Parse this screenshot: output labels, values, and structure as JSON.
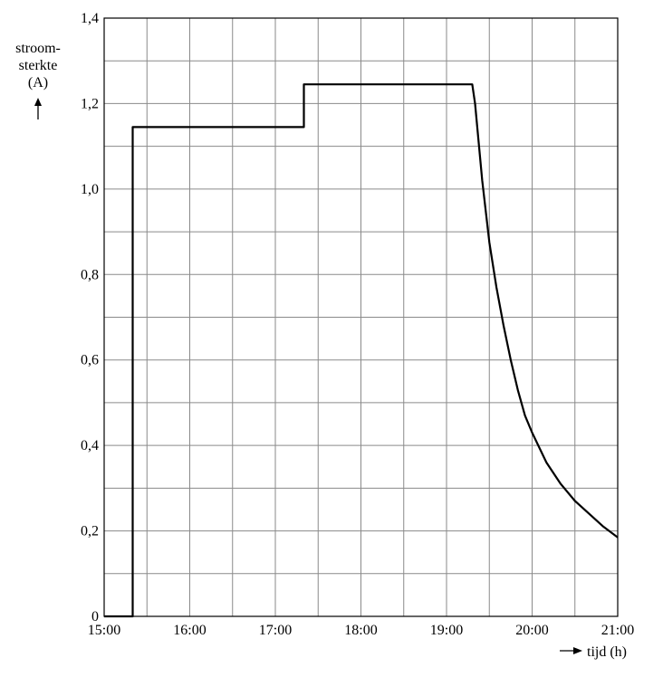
{
  "chart_data": {
    "type": "line",
    "ylabel_lines": [
      "stroom-",
      "sterkte",
      "(A)"
    ],
    "xlabel": "tijd (h)",
    "x_unit": "h",
    "xlim": [
      "15:00",
      "21:00"
    ],
    "ylim": [
      0,
      1.4
    ],
    "x_ticks": [
      "15:00",
      "16:00",
      "17:00",
      "18:00",
      "19:00",
      "20:00",
      "21:00"
    ],
    "y_ticks": [
      "0",
      "0,2",
      "0,4",
      "0,6",
      "0,8",
      "1,0",
      "1,2",
      "1,4"
    ],
    "grid": true,
    "series": [
      {
        "x": [
          "15:00",
          "15:20",
          "15:20",
          "17:20",
          "17:20",
          "19:18",
          "19:20",
          "19:25",
          "19:30",
          "19:35",
          "19:40",
          "19:45",
          "19:50",
          "19:55",
          "20:00",
          "20:10",
          "20:20",
          "20:30",
          "20:40",
          "20:50",
          "21:00"
        ],
        "y": [
          0,
          0,
          1.145,
          1.145,
          1.245,
          1.245,
          1.2,
          1.02,
          0.875,
          0.77,
          0.68,
          0.6,
          0.53,
          0.47,
          0.43,
          0.36,
          0.31,
          0.27,
          0.24,
          0.21,
          0.185
        ]
      }
    ]
  }
}
